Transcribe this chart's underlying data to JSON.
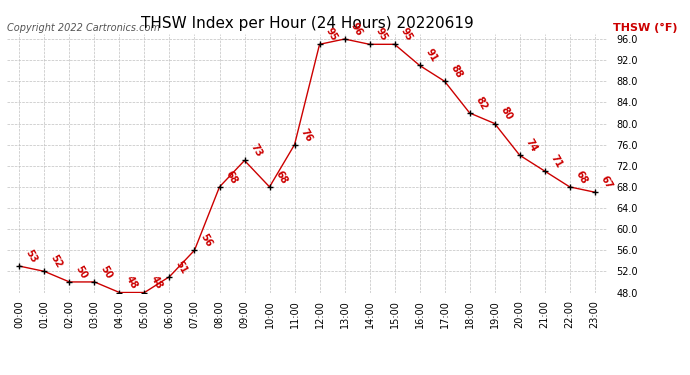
{
  "title": "THSW Index per Hour (24 Hours) 20220619",
  "copyright_text": "Copyright 2022 Cartronics.com",
  "legend_label": "THSW (°F)",
  "hours": [
    0,
    1,
    2,
    3,
    4,
    5,
    6,
    7,
    8,
    9,
    10,
    11,
    12,
    13,
    14,
    15,
    16,
    17,
    18,
    19,
    20,
    21,
    22,
    23
  ],
  "values": [
    53,
    52,
    50,
    50,
    48,
    48,
    51,
    56,
    68,
    73,
    68,
    76,
    95,
    96,
    95,
    95,
    91,
    88,
    82,
    80,
    74,
    71,
    68,
    67
  ],
  "ylim_min": 48.0,
  "ylim_max": 97.0,
  "y_ticks": [
    48.0,
    52.0,
    56.0,
    60.0,
    64.0,
    68.0,
    72.0,
    76.0,
    80.0,
    84.0,
    88.0,
    92.0,
    96.0
  ],
  "line_color": "#cc0000",
  "marker_color": "#000000",
  "bg_color": "#ffffff",
  "grid_color": "#c0c0c0",
  "title_fontsize": 11,
  "label_fontsize": 7,
  "annotation_fontsize": 7,
  "copyright_fontsize": 7
}
